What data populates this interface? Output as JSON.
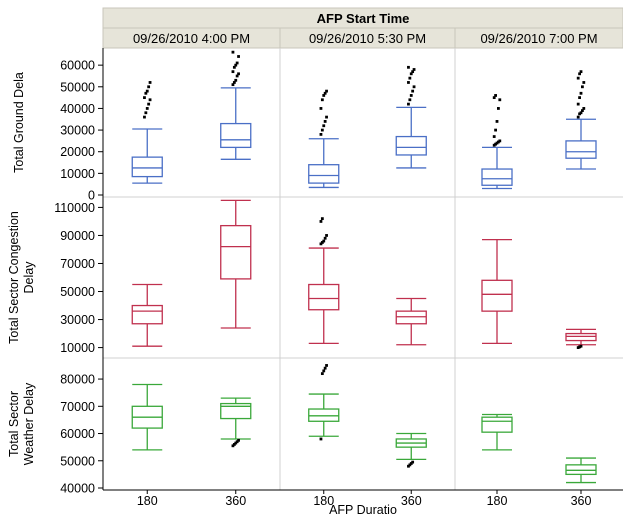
{
  "chart_data": {
    "type": "box",
    "title": "AFP Start Time",
    "xlabel": "AFP Duratio",
    "x_categories": [
      "180",
      "360"
    ],
    "panels": [
      "09/26/2010 4:00 PM",
      "09/26/2010 5:30 PM",
      "09/26/2010 7:00 PM"
    ],
    "rows": [
      {
        "ylabel": [
          "Total Ground Dela"
        ],
        "color": "#4a6fc6",
        "ylim": [
          0,
          67000
        ],
        "yticks": [
          0,
          10000,
          20000,
          30000,
          40000,
          50000,
          60000
        ],
        "tick_labels": [
          "0",
          "10000",
          "20000",
          "30000",
          "40000",
          "50000",
          "60000"
        ],
        "boxes": [
          {
            "panel": 0,
            "x": "180",
            "min": 5500,
            "q1": 8500,
            "median": 12500,
            "q3": 17500,
            "max": 30500,
            "outliers": [
              36000,
              38000,
              40000,
              42000,
              44000,
              45000,
              47000,
              48000,
              50000,
              52000
            ]
          },
          {
            "panel": 0,
            "x": "360",
            "min": 16500,
            "q1": 22000,
            "median": 25500,
            "q3": 33000,
            "max": 49500,
            "outliers": [
              51000,
              52000,
              53000,
              55000,
              56000,
              57000,
              59000,
              60000,
              61000,
              64000,
              66000
            ]
          },
          {
            "panel": 1,
            "x": "180",
            "min": 3500,
            "q1": 5500,
            "median": 9000,
            "q3": 14000,
            "max": 26000,
            "outliers": [
              28000,
              30000,
              32000,
              34000,
              36000,
              40000,
              44000,
              46000,
              47000,
              48000
            ]
          },
          {
            "panel": 1,
            "x": "360",
            "min": 12500,
            "q1": 18500,
            "median": 22000,
            "q3": 27000,
            "max": 40500,
            "outliers": [
              42000,
              44000,
              46000,
              48000,
              50000,
              52000,
              54000,
              56000,
              57000,
              58000,
              59000
            ]
          },
          {
            "panel": 2,
            "x": "180",
            "min": 3000,
            "q1": 4500,
            "median": 7500,
            "q3": 12000,
            "max": 22000,
            "outliers": [
              23000,
              23500,
              24000,
              24500,
              25000,
              27000,
              30000,
              34000,
              40000,
              44000,
              45000,
              46000
            ]
          },
          {
            "panel": 2,
            "x": "360",
            "min": 12000,
            "q1": 17000,
            "median": 20000,
            "q3": 25000,
            "max": 35000,
            "outliers": [
              36000,
              37500,
              38000,
              39000,
              40000,
              42000,
              45000,
              47000,
              50000,
              52000,
              54000,
              56000,
              57000
            ]
          }
        ]
      },
      {
        "ylabel": [
          "Total Sector Congestion",
          "Delay"
        ],
        "color": "#c0304e",
        "ylim": [
          4000,
          116000
        ],
        "yticks": [
          10000,
          30000,
          50000,
          70000,
          90000,
          110000
        ],
        "tick_labels": [
          "10000",
          "30000",
          "50000",
          "70000",
          "90000",
          "110000"
        ],
        "boxes": [
          {
            "panel": 0,
            "x": "180",
            "min": 11000,
            "q1": 27000,
            "median": 36000,
            "q3": 40000,
            "max": 55000,
            "outliers": []
          },
          {
            "panel": 0,
            "x": "360",
            "min": 24000,
            "q1": 59000,
            "median": 82000,
            "q3": 97000,
            "max": 115000,
            "outliers": []
          },
          {
            "panel": 1,
            "x": "180",
            "min": 13000,
            "q1": 37000,
            "median": 45000,
            "q3": 55000,
            "max": 81000,
            "outliers": [
              84000,
              85000,
              86000,
              88000,
              90000,
              100000,
              102000
            ]
          },
          {
            "panel": 1,
            "x": "360",
            "min": 12000,
            "q1": 27000,
            "median": 32000,
            "q3": 36000,
            "max": 45000,
            "outliers": []
          },
          {
            "panel": 2,
            "x": "180",
            "min": 13000,
            "q1": 36000,
            "median": 48000,
            "q3": 58000,
            "max": 87000,
            "outliers": []
          },
          {
            "panel": 2,
            "x": "360",
            "min": 12000,
            "q1": 15000,
            "median": 18000,
            "q3": 20000,
            "max": 23000,
            "outliers": [
              10000,
              10500,
              11000
            ]
          }
        ]
      },
      {
        "ylabel": [
          "Total Sector",
          "Weather Delay"
        ],
        "color": "#3aa83a",
        "ylim": [
          40000,
          87000
        ],
        "yticks": [
          40000,
          50000,
          60000,
          70000,
          80000
        ],
        "tick_labels": [
          "40000",
          "50000",
          "60000",
          "70000",
          "80000"
        ],
        "boxes": [
          {
            "panel": 0,
            "x": "180",
            "min": 54000,
            "q1": 62000,
            "median": 66000,
            "q3": 70000,
            "max": 78000,
            "outliers": []
          },
          {
            "panel": 0,
            "x": "360",
            "min": 58000,
            "q1": 65500,
            "median": 70000,
            "q3": 71000,
            "max": 73000,
            "outliers": [
              55500,
              56000,
              56500,
              57000,
              57500
            ]
          },
          {
            "panel": 1,
            "x": "180",
            "min": 59000,
            "q1": 64500,
            "median": 66500,
            "q3": 69000,
            "max": 74500,
            "outliers": [
              58000,
              82000,
              83000,
              84000,
              85000
            ]
          },
          {
            "panel": 1,
            "x": "360",
            "min": 50500,
            "q1": 55000,
            "median": 56500,
            "q3": 58000,
            "max": 60000,
            "outliers": [
              48000,
              48500,
              49000,
              49500
            ]
          },
          {
            "panel": 2,
            "x": "180",
            "min": 54000,
            "q1": 60500,
            "median": 64500,
            "q3": 66000,
            "max": 67000,
            "outliers": []
          },
          {
            "panel": 2,
            "x": "360",
            "min": 42000,
            "q1": 45000,
            "median": 46500,
            "q3": 48500,
            "max": 51000,
            "outliers": []
          }
        ]
      }
    ]
  }
}
